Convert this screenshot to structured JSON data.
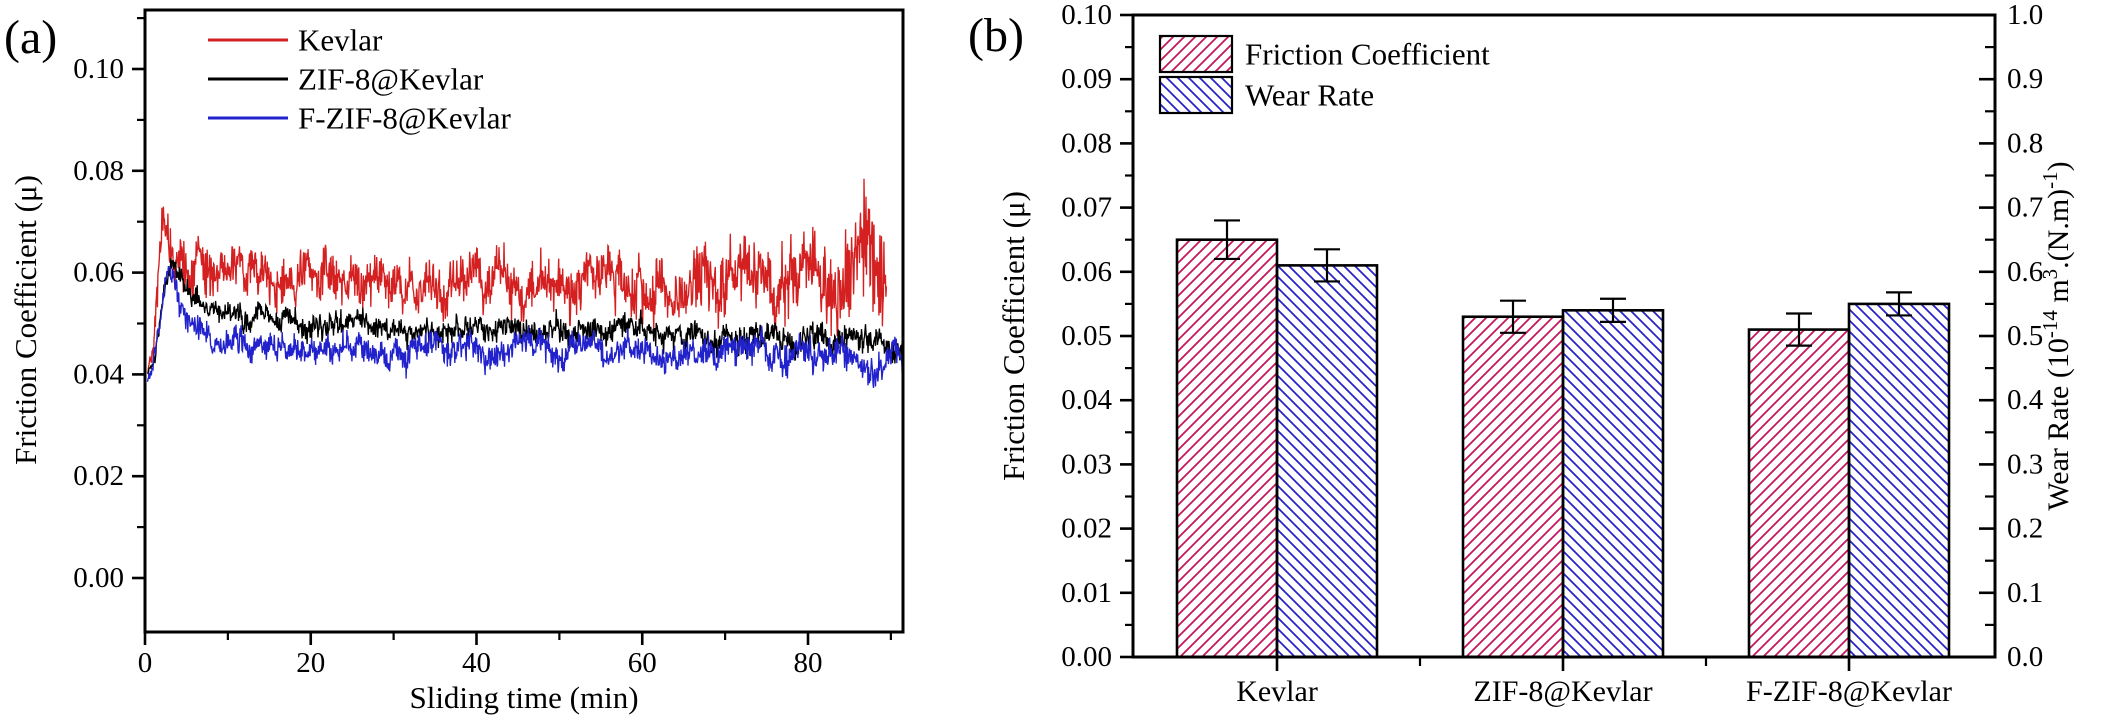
{
  "panels": {
    "a_label": "(a)",
    "b_label": "(b)"
  },
  "chart_data": [
    {
      "type": "line",
      "panel": "a",
      "title": "",
      "xlabel": "Sliding time (min)",
      "ylabel": "Friction Coefficient (μ)",
      "xlim": [
        0,
        91.5
      ],
      "ylim": [
        -0.0106,
        0.1116
      ],
      "xticks": [
        0,
        20,
        40,
        60,
        80
      ],
      "xticks_minor": [
        10,
        30,
        50,
        70,
        90
      ],
      "yticks": [
        0.0,
        0.02,
        0.04,
        0.06,
        0.08,
        0.1
      ],
      "yticks_minor": [
        0.01,
        0.03,
        0.05,
        0.07,
        0.09,
        0.11
      ],
      "x_decimals": 0,
      "y_decimals": 2,
      "grid": false,
      "legend_position": "top-left-inside",
      "series": [
        {
          "name": "Kevlar",
          "color": "#d42020",
          "trend": [
            [
              0.3,
              0.04
            ],
            [
              1.0,
              0.046
            ],
            [
              1.6,
              0.06
            ],
            [
              2.3,
              0.0705
            ],
            [
              3.0,
              0.0665
            ],
            [
              4.5,
              0.0615
            ],
            [
              6,
              0.0605
            ],
            [
              10,
              0.0595
            ],
            [
              15,
              0.059
            ],
            [
              20,
              0.0585
            ],
            [
              25,
              0.059
            ],
            [
              30,
              0.0585
            ],
            [
              35,
              0.058
            ],
            [
              40,
              0.0575
            ],
            [
              45,
              0.0575
            ],
            [
              50,
              0.057
            ],
            [
              55,
              0.0575
            ],
            [
              60,
              0.058
            ],
            [
              65,
              0.0575
            ],
            [
              70,
              0.058
            ],
            [
              75,
              0.0585
            ],
            [
              80,
              0.059
            ],
            [
              84,
              0.06
            ],
            [
              86,
              0.062
            ],
            [
              88,
              0.064
            ],
            [
              89,
              0.06
            ],
            [
              89.5,
              0.058
            ]
          ],
          "noise": [
            [
              0.3,
              0.001
            ],
            [
              1.5,
              0.003
            ],
            [
              2.5,
              0.0045
            ],
            [
              5,
              0.004
            ],
            [
              10,
              0.0035
            ],
            [
              30,
              0.0035
            ],
            [
              50,
              0.004
            ],
            [
              60,
              0.0045
            ],
            [
              70,
              0.005
            ],
            [
              78,
              0.0055
            ],
            [
              83,
              0.0065
            ],
            [
              86,
              0.009
            ],
            [
              88,
              0.01
            ],
            [
              89.5,
              0.007
            ]
          ]
        },
        {
          "name": "ZIF-8@Kevlar",
          "color": "#000000",
          "trend": [
            [
              0.3,
              0.04
            ],
            [
              1.2,
              0.044
            ],
            [
              2.0,
              0.054
            ],
            [
              3.2,
              0.063
            ],
            [
              4.0,
              0.06
            ],
            [
              5.5,
              0.0555
            ],
            [
              7,
              0.053
            ],
            [
              9,
              0.0515
            ],
            [
              12,
              0.0505
            ],
            [
              16,
              0.0505
            ],
            [
              20,
              0.05
            ],
            [
              30,
              0.0495
            ],
            [
              40,
              0.049
            ],
            [
              50,
              0.0485
            ],
            [
              60,
              0.048
            ],
            [
              70,
              0.0475
            ],
            [
              80,
              0.047
            ],
            [
              85,
              0.0465
            ],
            [
              91.5,
              0.046
            ]
          ],
          "noise": [
            [
              0.3,
              0.0008
            ],
            [
              2,
              0.0015
            ],
            [
              5,
              0.0018
            ],
            [
              10,
              0.0018
            ],
            [
              30,
              0.0018
            ],
            [
              60,
              0.002
            ],
            [
              80,
              0.0022
            ],
            [
              91.5,
              0.0022
            ]
          ]
        },
        {
          "name": "F-ZIF-8@Kevlar",
          "color": "#2222cc",
          "trend": [
            [
              0.3,
              0.038
            ],
            [
              1.0,
              0.042
            ],
            [
              1.8,
              0.05
            ],
            [
              2.8,
              0.0605
            ],
            [
              3.6,
              0.057
            ],
            [
              5,
              0.051
            ],
            [
              7,
              0.048
            ],
            [
              9,
              0.0465
            ],
            [
              12,
              0.0455
            ],
            [
              16,
              0.0455
            ],
            [
              20,
              0.045
            ],
            [
              30,
              0.0452
            ],
            [
              40,
              0.045
            ],
            [
              50,
              0.0448
            ],
            [
              60,
              0.0445
            ],
            [
              70,
              0.044
            ],
            [
              80,
              0.044
            ],
            [
              86,
              0.0435
            ],
            [
              91.5,
              0.043
            ]
          ],
          "noise": [
            [
              0.3,
              0.0008
            ],
            [
              2,
              0.0018
            ],
            [
              5,
              0.002
            ],
            [
              10,
              0.0022
            ],
            [
              30,
              0.0022
            ],
            [
              60,
              0.0022
            ],
            [
              91.5,
              0.0024
            ]
          ]
        }
      ]
    },
    {
      "type": "bar",
      "panel": "b",
      "title": "",
      "categories": [
        "Kevlar",
        "ZIF-8@Kevlar",
        "F-ZIF-8@Kevlar"
      ],
      "ylabel_left": "Friction Coefficient (μ)",
      "ylabel_right_parts": [
        {
          "t": "Wear Rate  (10"
        },
        {
          "t": "-14",
          "sup": true
        },
        {
          "t": " m"
        },
        {
          "t": "3",
          "sup": true
        },
        {
          "t": ".(N.m)"
        },
        {
          "t": "-1",
          "sup": true
        },
        {
          "t": ")"
        }
      ],
      "ylim_left": [
        0,
        0.1
      ],
      "ylim_right": [
        0,
        1.0
      ],
      "yticks_left": {
        "step": 0.01,
        "minor_step": 0.005,
        "decimals": 2
      },
      "yticks_right": {
        "step": 0.1,
        "minor_step": 0.05,
        "decimals": 1
      },
      "grid": false,
      "legend_position": "top-left-inside",
      "series": [
        {
          "name": "Friction Coefficient",
          "axis": "left",
          "color": "#c4175c",
          "hatch": "/",
          "values": [
            0.065,
            0.053,
            0.051
          ],
          "errors": [
            0.003,
            0.0025,
            0.0025
          ]
        },
        {
          "name": "Wear Rate",
          "axis": "right",
          "color": "#2823c8",
          "hatch": "\\",
          "values": [
            0.61,
            0.54,
            0.55
          ],
          "errors": [
            0.025,
            0.018,
            0.018
          ]
        }
      ]
    }
  ]
}
